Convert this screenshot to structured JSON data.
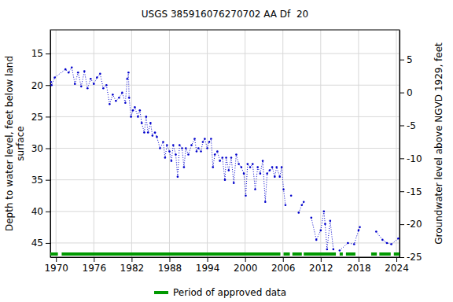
{
  "chart_data": {
    "type": "line",
    "title": "USGS 385916076270702 AA Df  20",
    "ylabel": [
      "Depth to water level, feet below land",
      "surface"
    ],
    "y2label": "Groundwater level above NGVD 1929, feet",
    "xlim": [
      1969.1,
      2024.5
    ],
    "xticks": [
      1970,
      1976,
      1982,
      1988,
      1994,
      2000,
      2006,
      2012,
      2018,
      2024
    ],
    "ylim": [
      11.25,
      47.25
    ],
    "yticks": [
      15,
      20,
      25,
      30,
      35,
      40,
      45
    ],
    "y2lim": [
      9.5,
      -25
    ],
    "y2ticks": [
      5,
      0,
      -5,
      -10,
      -15,
      -20,
      -25
    ],
    "x": [
      1969.2,
      1969.3,
      1969.8,
      1971.5,
      1972,
      1972.5,
      1973,
      1973.5,
      1974,
      1974.5,
      1975,
      1975.5,
      1976,
      1976.5,
      1977,
      1977.5,
      1978,
      1978.5,
      1979,
      1979.5,
      1980,
      1980.5,
      1981,
      1981.3,
      1981.5,
      1981.6,
      1981.9,
      1982.2,
      1982.5,
      1983,
      1983.3,
      1983.6,
      1984,
      1984.3,
      1984.6,
      1985,
      1985.3,
      1985.7,
      1986,
      1986.5,
      1987,
      1987.3,
      1987.6,
      1988,
      1988.3,
      1988.6,
      1989,
      1989.3,
      1989.6,
      1990,
      1990.3,
      1990.6,
      1991,
      1991.5,
      1992,
      1992.3,
      1992.6,
      1993,
      1993.3,
      1993.6,
      1994,
      1994.3,
      1994.6,
      1994.9,
      1995.2,
      1995.6,
      1996,
      1996.4,
      1996.8,
      1997,
      1997.4,
      1997.8,
      1998.2,
      1998.6,
      1999,
      1999.4,
      1999.8,
      2000.1,
      2000.4,
      2000.8,
      2001.2,
      2001.6,
      2002,
      2002.4,
      2002.8,
      2003.2,
      2003.5,
      2003.9,
      2004.3,
      2004.7,
      2005,
      2005.5,
      2005.8,
      2006.1,
      2006.4,
      2006.8,
      2007.3,
      2007.9,
      2008.5,
      2009,
      2009.3,
      2009.9,
      2010.5,
      2011.3,
      2012,
      2012.5,
      2012.7,
      2013,
      2013.5,
      2014,
      2014.5,
      2015,
      2016.3,
      2017.3,
      2018,
      2018.2,
      2019.5,
      2020.8,
      2021.8,
      2022.5,
      2023.2,
      2024.3
    ],
    "series": [
      {
        "name": "Depth to water level",
        "color": "#0000cc",
        "marker": "circle",
        "line_style": "dotted",
        "values": [
          19.5,
          20,
          18.8,
          17.5,
          18,
          17.2,
          19.8,
          18,
          20.2,
          17.8,
          20.5,
          19,
          19.8,
          18.8,
          18.2,
          20.5,
          20,
          23,
          21.5,
          22.5,
          22,
          21.2,
          22.8,
          19,
          18,
          22,
          25,
          24,
          23.5,
          25,
          24,
          26,
          27.5,
          25,
          27.5,
          26,
          28,
          27.5,
          28.2,
          30,
          29,
          31.5,
          29.5,
          30.5,
          32,
          29.5,
          31,
          34.5,
          29.5,
          30,
          33,
          30,
          31,
          29.5,
          28.5,
          30.5,
          30,
          30.5,
          29,
          28.5,
          30,
          29,
          28.5,
          33,
          31,
          30.5,
          32,
          31.5,
          35,
          31.5,
          33.5,
          31.5,
          35.5,
          31,
          32.5,
          33,
          34,
          37.5,
          32.5,
          33,
          32.5,
          36.5,
          33,
          34,
          32,
          38.5,
          34,
          33.5,
          33,
          34.5,
          33,
          34.5,
          33,
          36.5,
          39,
          null,
          37.5,
          null,
          40.2,
          39,
          38.5,
          null,
          41,
          44.5,
          43,
          40,
          42,
          46,
          41.5,
          46,
          null,
          46.2,
          45,
          45.2,
          43,
          42.5,
          null,
          43.2,
          44.5,
          45,
          45.2,
          44.3
        ]
      }
    ],
    "approved": {
      "name": "Period of approved data",
      "color": "#009900",
      "start": [
        1969.1,
        1970.9,
        2006.1,
        2007.5,
        2009.3,
        2015,
        2016,
        2020,
        2021.3,
        2023.6
      ],
      "end": [
        1970.3,
        2005.6,
        2007.1,
        2009,
        2014.4,
        2015.5,
        2017.5,
        2020.9,
        2023.1,
        2024.5
      ]
    }
  }
}
